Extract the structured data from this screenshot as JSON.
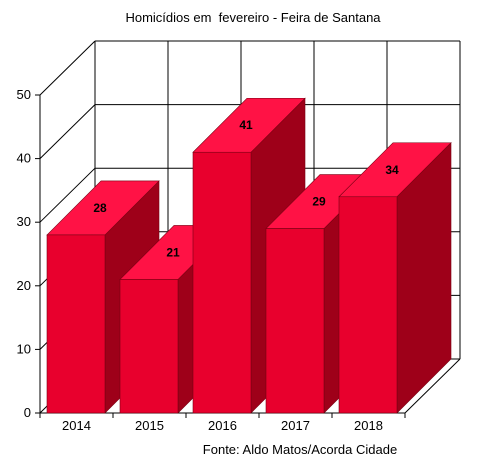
{
  "chart_data": {
    "type": "bar",
    "title": "Homicídios em  fevereiro - Feira de Santana",
    "source": "Fonte: Aldo Matos/Acorda Cidade",
    "categories": [
      "2014",
      "2015",
      "2016",
      "2017",
      "2018"
    ],
    "values": [
      28,
      21,
      41,
      29,
      34
    ],
    "value_labels": [
      "28",
      "21",
      "41",
      "29",
      "34"
    ],
    "yticks": [
      "0",
      "10",
      "20",
      "30",
      "40",
      "50"
    ],
    "ylim": [
      0,
      50
    ],
    "grid": true,
    "style": "3d",
    "colors": {
      "bar_front": "#e8002d",
      "bar_side": "#9e0019",
      "bar_top": "#ff1245",
      "bar_edge": "#7a0013",
      "grid": "#000000"
    }
  }
}
